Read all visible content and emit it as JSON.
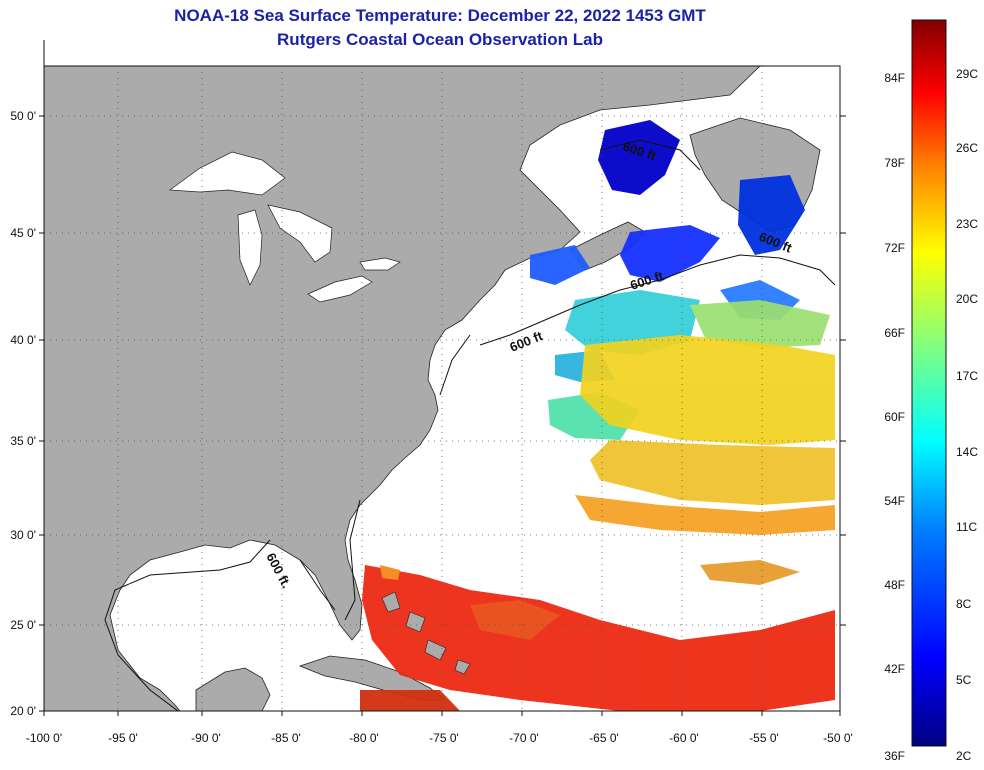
{
  "header": {
    "title": "NOAA-18 Sea Surface Temperature:  December 22, 2022 1453 GMT",
    "subtitle": "Rutgers Coastal Ocean Observation Lab"
  },
  "map": {
    "lon_labels": [
      "-100 0'",
      "-95 0'",
      "-90 0'",
      "-85 0'",
      "-80 0'",
      "-75 0'",
      "-70 0'",
      "-65 0'",
      "-60 0'",
      "-55 0'",
      "-50 0'"
    ],
    "lat_labels": [
      "50 0'",
      "45 0'",
      "40 0'",
      "35 0'",
      "30 0'",
      "25 0'",
      "20 0'"
    ],
    "isobath_labels": [
      "600 ft",
      "600 ft",
      "600 ft",
      "600 ft",
      "600 ft."
    ],
    "colors": {
      "land": "#ababab",
      "ocean": "#ffffff",
      "gridline": "#555555"
    }
  },
  "colorbar": {
    "f_labels": [
      "84F",
      "78F",
      "72F",
      "66F",
      "60F",
      "54F",
      "48F",
      "42F",
      "36F"
    ],
    "c_labels": [
      "29C",
      "26C",
      "23C",
      "20C",
      "17C",
      "14C",
      "11C",
      "8C",
      "5C",
      "2C"
    ],
    "colors": [
      "#000080",
      "#0000ff",
      "#0080ff",
      "#00ffff",
      "#80ff80",
      "#ffff00",
      "#ff8000",
      "#ff0000",
      "#800000"
    ]
  }
}
